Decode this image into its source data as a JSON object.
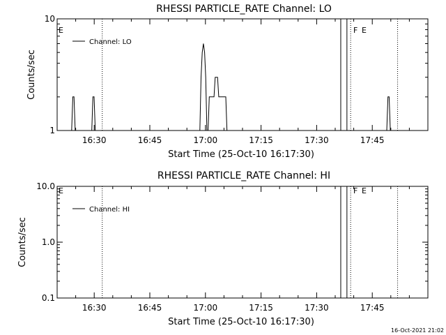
{
  "chart_data": [
    {
      "type": "line",
      "title": "RHESSI PARTICLE_RATE Channel: LO",
      "xlabel": "Start Time (25-Oct-10 16:17:30)",
      "ylabel": "Counts/sec",
      "y_scale": "log",
      "xlim": [
        "16:20",
        "18:00"
      ],
      "ylim": [
        1,
        10
      ],
      "x_ticks": [
        "16:30",
        "16:45",
        "17:00",
        "17:15",
        "17:30",
        "17:45"
      ],
      "y_ticks": [
        "1",
        "10"
      ],
      "legend": "top-left",
      "series": [
        {
          "name": "Channel: LO",
          "x": [
            "16:23:55",
            "16:24:14",
            "16:24:33",
            "16:24:52",
            "16:29:20",
            "16:29:39",
            "16:29:58",
            "16:30:17",
            "16:58:30",
            "16:58:49",
            "16:59:08",
            "16:59:27",
            "16:59:46",
            "17:00:05",
            "17:00:24",
            "17:00:43",
            "17:01:02",
            "17:01:21",
            "17:01:40",
            "17:02:00",
            "17:02:19",
            "17:02:38",
            "17:02:57",
            "17:03:16",
            "17:03:35",
            "17:03:54",
            "17:04:13",
            "17:04:32",
            "17:04:51",
            "17:05:10",
            "17:05:29",
            "17:05:48",
            "17:06:07",
            "17:06:26",
            "17:06:45",
            "17:07:04",
            "17:07:23",
            "17:07:42",
            "17:48:55",
            "17:49:14",
            "17:49:33",
            "17:49:52"
          ],
          "y": [
            1,
            2,
            2,
            1,
            1,
            2,
            2,
            1,
            1,
            3,
            5,
            6,
            5,
            3,
            1,
            1,
            2,
            2,
            2,
            2,
            2,
            3,
            3,
            3,
            2,
            2,
            2,
            2,
            2,
            2,
            2,
            1,
            1,
            1,
            1,
            1,
            1,
            1,
            1,
            2,
            2,
            1
          ]
        }
      ],
      "legend_entry": "Channel: LO",
      "flag_labels": {
        "E_left": "E",
        "F": "F",
        "E_right": "E"
      },
      "flag_times": {
        "solid": [
          "17:36:30",
          "17:38:10"
        ],
        "dotted": [
          "16:32:10",
          "17:39:10",
          "17:51:50"
        ]
      }
    },
    {
      "type": "line",
      "title": "RHESSI PARTICLE_RATE Channel: HI",
      "xlabel": "Start Time (25-Oct-10 16:17:30)",
      "ylabel": "Counts/sec",
      "y_scale": "log",
      "xlim": [
        "16:20",
        "18:00"
      ],
      "ylim": [
        0.1,
        10
      ],
      "x_ticks": [
        "16:30",
        "16:45",
        "17:00",
        "17:15",
        "17:30",
        "17:45"
      ],
      "y_ticks": [
        "0.1",
        "1.0",
        "10.0"
      ],
      "legend": "top-left",
      "series": [
        {
          "name": "Channel: HI",
          "x": [],
          "y": []
        }
      ],
      "legend_entry": "Channel: HI",
      "flag_labels": {
        "E_left": "E",
        "F": "F",
        "E_right": "E"
      },
      "flag_times": {
        "solid": [
          "17:36:30",
          "17:38:10"
        ],
        "dotted": [
          "16:32:10",
          "17:39:10",
          "17:51:50"
        ]
      }
    }
  ],
  "timestamp": "16-Oct-2021 21:02"
}
